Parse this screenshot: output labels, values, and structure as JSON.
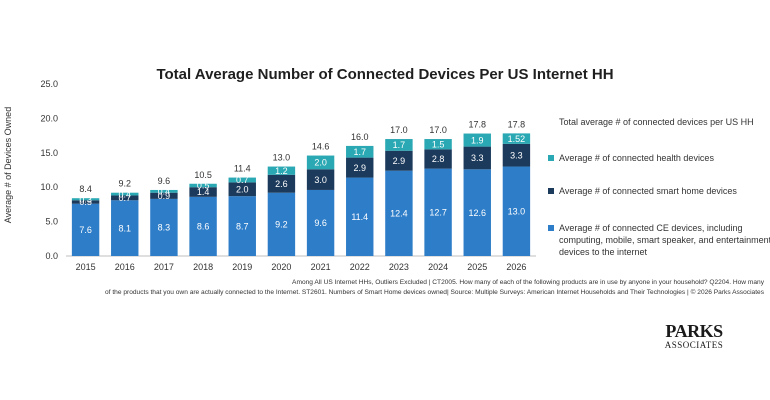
{
  "chart_data": {
    "type": "bar",
    "stacked": true,
    "title": "Total Average Number of Connected Devices Per US Internet HH",
    "ylabel": "Average # of Devices Owned",
    "xlabel": "",
    "ylim": [
      0,
      25
    ],
    "yticks": [
      "0.0",
      "5.0",
      "10.0",
      "15.0",
      "20.0",
      "25.0"
    ],
    "categories": [
      "2015",
      "2016",
      "2017",
      "2018",
      "2019",
      "2020",
      "2021",
      "2022",
      "2023",
      "2024",
      "2025",
      "2026"
    ],
    "series": [
      {
        "name": "Average # of connected CE devices, including computing, mobile, smart speaker, and entertainment devices to the internet",
        "color": "#2e7dc8",
        "values": [
          7.6,
          8.1,
          8.3,
          8.6,
          8.7,
          9.2,
          9.6,
          11.4,
          12.4,
          12.7,
          12.6,
          13.0
        ],
        "labels": [
          "7.6",
          "8.1",
          "8.3",
          "8.6",
          "8.7",
          "9.2",
          "9.6",
          "11.4",
          "12.4",
          "12.7",
          "12.6",
          "13.0"
        ]
      },
      {
        "name": "Average # of connected smart home devices",
        "color": "#1c3a5c",
        "values": [
          0.5,
          0.7,
          0.9,
          1.4,
          2.0,
          2.6,
          3.0,
          2.9,
          2.9,
          2.8,
          3.3,
          3.3
        ],
        "labels": [
          "0.5",
          "0.7",
          "0.9",
          "1.4",
          "2.0",
          "2.6",
          "3.0",
          "2.9",
          "2.9",
          "2.8",
          "3.3",
          "3.3"
        ]
      },
      {
        "name": "Average # of connected health devices",
        "color": "#2aa8b3",
        "values": [
          0.3,
          0.4,
          0.4,
          0.5,
          0.7,
          1.2,
          2.0,
          1.7,
          1.7,
          1.5,
          1.9,
          1.52
        ],
        "labels": [
          "0.3",
          "0.4",
          "0.4",
          "0.5",
          "0.7",
          "1.2",
          "2.0",
          "1.7",
          "1.7",
          "1.5",
          "1.9",
          "1.52"
        ]
      }
    ],
    "totals": [
      "8.4",
      "9.2",
      "9.6",
      "10.5",
      "11.4",
      "13.0",
      "14.6",
      "16.0",
      "17.0",
      "17.0",
      "17.8",
      "17.8"
    ],
    "legend_title": "Total average # of connected devices per US HH",
    "legend_position": "right",
    "grid": false
  },
  "footnotes": {
    "line1": "Among All US Internet HHs, Outliers Excluded | CT2005. How many of each of the following products are in use by anyone in your household? Q2204. How many",
    "line2": "of the products that you own are actually connected to the Internet. ST2601. Numbers of Smart Home devices owned| Source: Multiple Surveys: American Internet Households and Their Technologies | © 2026 Parks Associates"
  },
  "logo": {
    "line1": "PARKS",
    "line2": "ASSOCIATES"
  }
}
